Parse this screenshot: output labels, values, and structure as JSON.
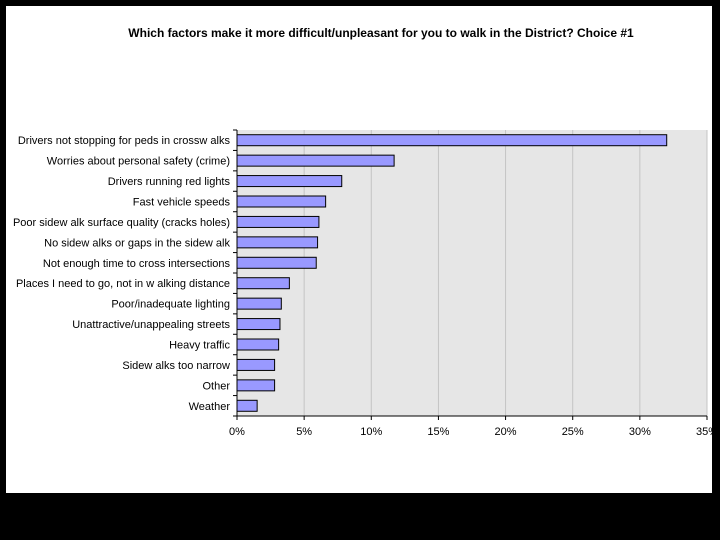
{
  "chart_data": {
    "type": "bar",
    "orientation": "horizontal",
    "title": "Which factors make it more difficult/unpleasant for you to walk in the District? Choice #1",
    "xlabel": "",
    "ylabel": "",
    "xlim": [
      0,
      35
    ],
    "x_ticks": [
      "0%",
      "5%",
      "10%",
      "15%",
      "20%",
      "25%",
      "30%",
      "35%"
    ],
    "x_tick_values": [
      0,
      5,
      10,
      15,
      20,
      25,
      30,
      35
    ],
    "grid": true,
    "legend": "none",
    "categories": [
      "Drivers not stopping for peds in crossw alks",
      "Worries about personal safety (crime)",
      "Drivers running red lights",
      "Fast vehicle speeds",
      "Poor sidew alk surface quality (cracks holes)",
      "No sidew alks or gaps in the sidew alk",
      "Not enough time to cross intersections",
      "Places I need to go, not in w alking distance",
      "Poor/inadequate lighting",
      "Unattractive/unappealing streets",
      "Heavy traffic",
      "Sidew alks too narrow",
      "Other",
      "Weather"
    ],
    "values": [
      32,
      11.7,
      7.8,
      6.6,
      6.1,
      6.0,
      5.9,
      3.9,
      3.3,
      3.2,
      3.1,
      2.8,
      2.8,
      1.5
    ],
    "colors": {
      "bar_fill": "#9999ff",
      "bar_stroke": "#000000",
      "plot_bg": "#e6e6e6",
      "grid": "#c4c4c4",
      "frame": "#000000",
      "slide_bg": "#ffffff",
      "outer_bg": "#000000"
    }
  }
}
